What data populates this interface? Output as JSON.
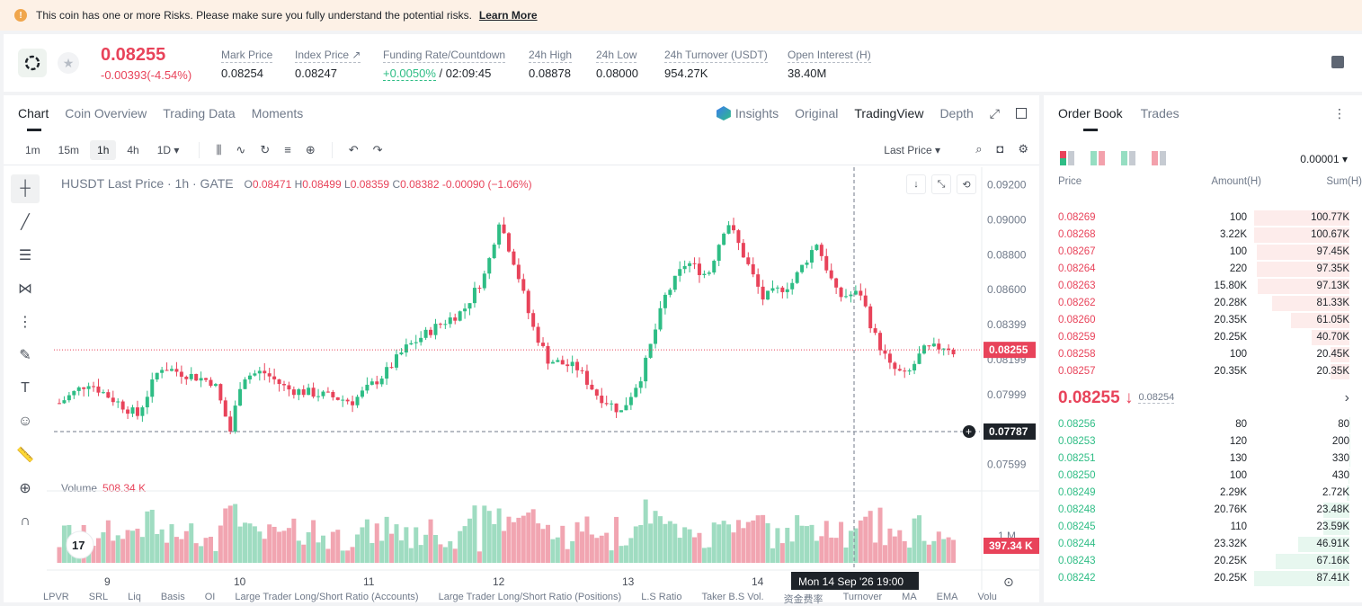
{
  "banner": {
    "text": "This coin has one or more Risks. Please make sure you fully understand the potential risks.",
    "link": "Learn More"
  },
  "ticker": {
    "price": "0.08255",
    "change": "-0.00393(-4.54%)",
    "stats": [
      {
        "label": "Mark Price",
        "value": "0.08254"
      },
      {
        "label": "Index Price ↗",
        "value": "0.08247"
      },
      {
        "label": "Funding Rate/Countdown",
        "value_green": "+0.0050%",
        "value": " / 02:09:45"
      },
      {
        "label": "24h High",
        "value": "0.08878"
      },
      {
        "label": "24h Low",
        "value": "0.08000"
      },
      {
        "label": "24h Turnover (USDT)",
        "value": "954.27K"
      },
      {
        "label": "Open Interest (H)",
        "value": "38.40M"
      }
    ]
  },
  "chart_tabs": [
    "Chart",
    "Coin Overview",
    "Trading Data",
    "Moments"
  ],
  "view_tabs": [
    "Insights",
    "Original",
    "TradingView",
    "Depth"
  ],
  "intervals": [
    "1m",
    "15m",
    "1h",
    "4h",
    "1D ▾"
  ],
  "price_type": "Last Price ▾",
  "legend": {
    "symbol": "HUSDT Last Price · 1h · GATE",
    "o": "0.08471",
    "h": "0.08499",
    "l": "0.08359",
    "c": "0.08382",
    "chg": "-0.00090 (−1.06%)",
    "volume_label": "Volume",
    "volume_value": "508.34 K"
  },
  "chart_data": {
    "type": "candlestick",
    "y_ticks": [
      "0.09200",
      "0.09000",
      "0.08800",
      "0.08600",
      "0.08399",
      "0.08199",
      "0.07999",
      "0.07599"
    ],
    "x_ticks": [
      "9",
      "10",
      "11",
      "12",
      "13",
      "14"
    ],
    "last_price_tag": "0.08255",
    "crosshair_tag": "0.07787",
    "crosshair_time": "Mon 14 Sep '26   19:00",
    "volume_ticks": [
      "1 M"
    ],
    "volume_tag": "397.34 K",
    "ylim": [
      0.075,
      0.093
    ]
  },
  "bottom_indicators": [
    "LPVR",
    "SRL",
    "Liq",
    "Basis",
    "OI",
    "Large Trader Long/Short Ratio (Accounts)",
    "Large Trader Long/Short Ratio (Positions)",
    "L.S Ratio",
    "Taker B.S Vol.",
    "资金费率",
    "Turnover",
    "MA",
    "EMA",
    "Volu"
  ],
  "orderbook": {
    "tabs": [
      "Order Book",
      "Trades"
    ],
    "precision": "0.00001 ▾",
    "headers": [
      "Price",
      "Amount(H)",
      "Sum(H)"
    ],
    "asks": [
      {
        "p": "0.08269",
        "a": "100",
        "s": "100.77K",
        "d": 1.0
      },
      {
        "p": "0.08268",
        "a": "3.22K",
        "s": "100.67K",
        "d": 1.0
      },
      {
        "p": "0.08267",
        "a": "100",
        "s": "97.45K",
        "d": 0.97
      },
      {
        "p": "0.08264",
        "a": "220",
        "s": "97.35K",
        "d": 0.97
      },
      {
        "p": "0.08263",
        "a": "15.80K",
        "s": "97.13K",
        "d": 0.96
      },
      {
        "p": "0.08262",
        "a": "20.28K",
        "s": "81.33K",
        "d": 0.81
      },
      {
        "p": "0.08260",
        "a": "20.35K",
        "s": "61.05K",
        "d": 0.61
      },
      {
        "p": "0.08259",
        "a": "20.25K",
        "s": "40.70K",
        "d": 0.4
      },
      {
        "p": "0.08258",
        "a": "100",
        "s": "20.45K",
        "d": 0.2
      },
      {
        "p": "0.08257",
        "a": "20.35K",
        "s": "20.35K",
        "d": 0.2
      }
    ],
    "mid_price": "0.08255 ↓",
    "mid_mark": "0.08254",
    "bids": [
      {
        "p": "0.08256",
        "a": "80",
        "s": "80",
        "d": 0.001
      },
      {
        "p": "0.08253",
        "a": "120",
        "s": "200",
        "d": 0.002
      },
      {
        "p": "0.08251",
        "a": "130",
        "s": "330",
        "d": 0.004
      },
      {
        "p": "0.08250",
        "a": "100",
        "s": "430",
        "d": 0.005
      },
      {
        "p": "0.08249",
        "a": "2.29K",
        "s": "2.72K",
        "d": 0.03
      },
      {
        "p": "0.08248",
        "a": "20.76K",
        "s": "23.48K",
        "d": 0.27
      },
      {
        "p": "0.08245",
        "a": "110",
        "s": "23.59K",
        "d": 0.27
      },
      {
        "p": "0.08244",
        "a": "23.32K",
        "s": "46.91K",
        "d": 0.54
      },
      {
        "p": "0.08243",
        "a": "20.25K",
        "s": "67.16K",
        "d": 0.77
      },
      {
        "p": "0.08242",
        "a": "20.25K",
        "s": "87.41K",
        "d": 1.0
      }
    ]
  }
}
